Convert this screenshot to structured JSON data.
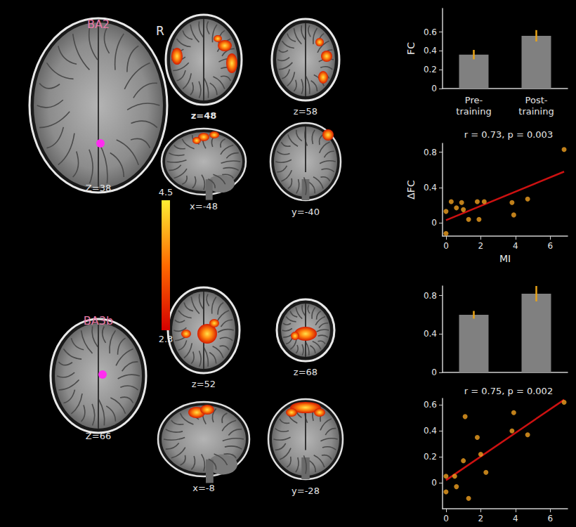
{
  "seeds": [
    {
      "label": "BA2",
      "slice": "Z=38"
    },
    {
      "label": "BA3b",
      "slice": "Z=66"
    }
  ],
  "side_label": "R",
  "maps": [
    [
      "z=48",
      "z=58",
      "x=-48",
      "y=-40"
    ],
    [
      "z=52",
      "z=68",
      "x=-8",
      "y=-28"
    ]
  ],
  "colorbar": {
    "range": [
      2.3,
      4.5
    ],
    "ticks": [
      2.3,
      4.5
    ]
  },
  "chart_data": [
    {
      "type": "bar",
      "categories": [
        "Pre-\ntraining",
        "Post-\ntraining"
      ],
      "values": [
        0.36,
        0.56
      ],
      "errors": [
        0.05,
        0.06
      ],
      "color": "#808080",
      "y_label": "FC",
      "ylim": [
        0,
        0.85
      ],
      "yticks": [
        0,
        0.2,
        0.4,
        0.6
      ],
      "grid": false
    },
    {
      "type": "scatter",
      "title": "r = 0.73, p = 0.003",
      "x_label": "MI",
      "y_label": "ΔFC",
      "xlim": [
        -0.2,
        7
      ],
      "xticks": [
        0,
        2,
        4,
        6
      ],
      "ylim": [
        -0.15,
        0.9
      ],
      "yticks": [
        0,
        0.4,
        0.8
      ],
      "grid": false,
      "series": [
        {
          "type": "scatter",
          "color": "#f0a020",
          "x": [
            0,
            0,
            0.3,
            0.6,
            0.9,
            1.0,
            1.3,
            1.8,
            1.9,
            2.2,
            3.8,
            3.9,
            4.7,
            6.8
          ],
          "values": [
            0.13,
            -0.12,
            0.24,
            0.17,
            0.23,
            0.15,
            0.04,
            0.24,
            0.04,
            0.24,
            0.23,
            0.09,
            0.27,
            0.83
          ]
        },
        {
          "type": "line",
          "color": "#cc1111",
          "x": [
            0,
            6.8
          ],
          "values": [
            0.03,
            0.58
          ]
        }
      ]
    },
    {
      "type": "bar",
      "categories": [
        null,
        null
      ],
      "values": [
        0.6,
        0.82
      ],
      "errors": [
        0.04,
        0.08
      ],
      "color": "#808080",
      "ylim": [
        0,
        0.9
      ],
      "yticks": [
        0,
        0.4,
        0.8
      ],
      "grid": false,
      "tick_labels": "y"
    },
    {
      "type": "scatter",
      "title": "r = 0.75, p = 0.002",
      "xlim": [
        -0.2,
        7
      ],
      "xticks": [
        0,
        2,
        4,
        6
      ],
      "ylim": [
        -0.2,
        0.65
      ],
      "yticks": [
        0,
        0.2,
        0.4,
        0.6
      ],
      "grid": false,
      "series": [
        {
          "type": "scatter",
          "color": "#f0a020",
          "x": [
            0,
            0,
            0.5,
            0.6,
            1.0,
            1.1,
            1.3,
            1.8,
            2.0,
            2.3,
            3.8,
            3.9,
            4.7,
            6.8
          ],
          "values": [
            0.05,
            -0.07,
            0.05,
            -0.03,
            0.17,
            0.51,
            -0.12,
            0.35,
            0.22,
            0.08,
            0.4,
            0.54,
            0.37,
            0.62
          ]
        },
        {
          "type": "line",
          "color": "#cc1111",
          "x": [
            0,
            6.8
          ],
          "values": [
            0.02,
            0.64
          ]
        }
      ]
    }
  ]
}
